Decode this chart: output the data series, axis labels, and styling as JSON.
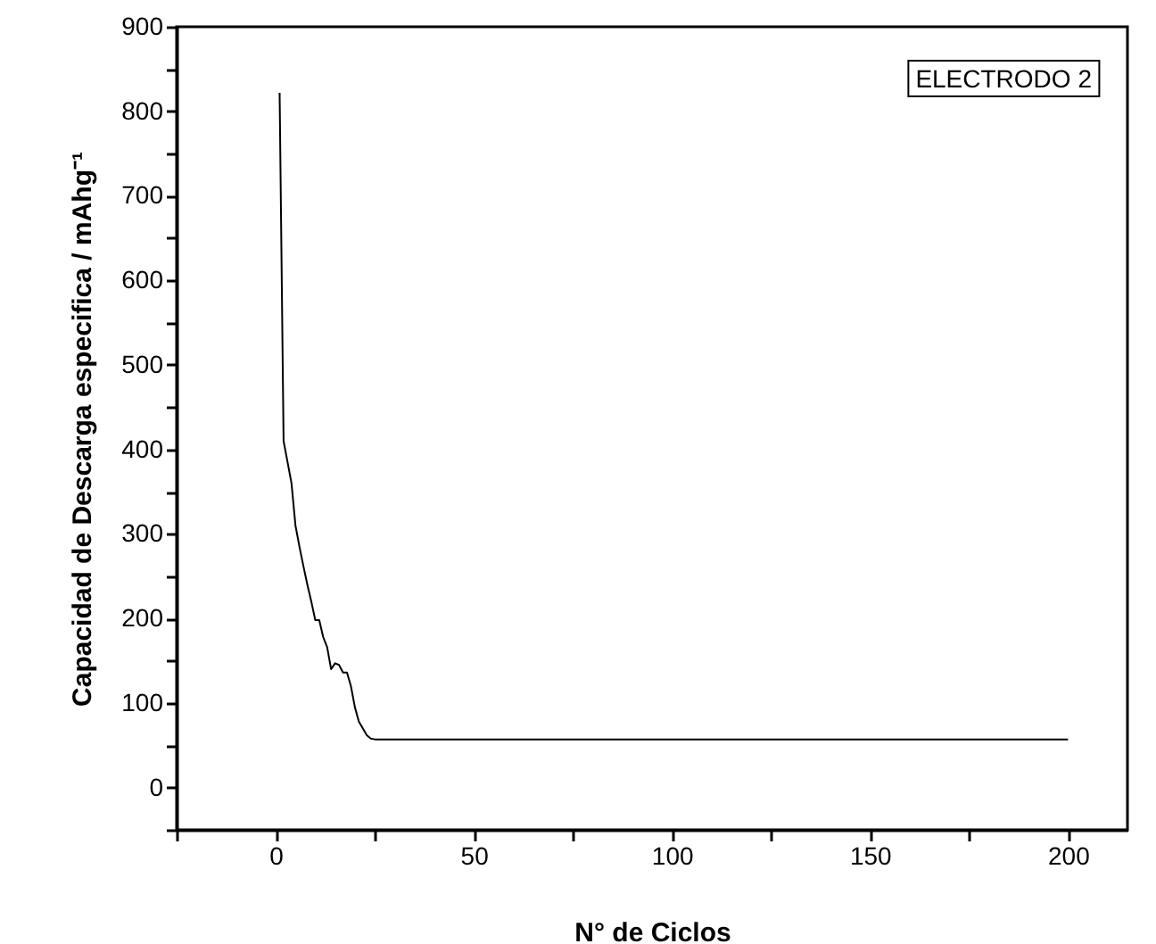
{
  "chart_data": {
    "type": "line",
    "xlabel": "N° de Ciclos",
    "ylabel": "Capacidad de Descarga especifica / mAhg⁻¹",
    "annotations": [
      "ELECTRODO 2"
    ],
    "x": [
      1,
      2,
      3,
      4,
      5,
      6,
      7,
      8,
      9,
      10,
      11,
      12,
      13,
      14,
      15,
      16,
      17,
      18,
      19,
      20,
      21,
      22,
      23,
      24,
      25,
      50,
      100,
      150,
      200
    ],
    "series": [
      {
        "color": "#000000",
        "values": [
          822,
          410,
          385,
          360,
          310,
          285,
          262,
          240,
          220,
          198,
          198,
          178,
          166,
          140,
          147,
          145,
          136,
          136,
          120,
          95,
          78,
          70,
          62,
          58,
          57,
          57,
          57,
          57,
          57
        ]
      }
    ],
    "xlim": [
      -25,
      215
    ],
    "xticks": [
      {
        "value": -25,
        "label": null
      },
      0,
      {
        "value": 25,
        "label": null
      },
      50,
      {
        "value": 75,
        "label": null
      },
      100,
      {
        "value": 125,
        "label": null
      },
      150,
      {
        "value": 175,
        "label": null
      },
      200
    ],
    "ylim": [
      -50,
      900
    ],
    "yticks": [
      {
        "value": -50,
        "label": null
      },
      0,
      {
        "value": 50,
        "label": null
      },
      100,
      {
        "value": 150,
        "label": null
      },
      200,
      {
        "value": 250,
        "label": null
      },
      300,
      {
        "value": 350,
        "label": null
      },
      400,
      {
        "value": 450,
        "label": null
      },
      500,
      {
        "value": 550,
        "label": null
      },
      600,
      {
        "value": 650,
        "label": null
      },
      700,
      {
        "value": 750,
        "label": null
      },
      800,
      {
        "value": 850,
        "label": null
      },
      900
    ],
    "grid": false,
    "marker": "none",
    "line_style": "solid"
  }
}
